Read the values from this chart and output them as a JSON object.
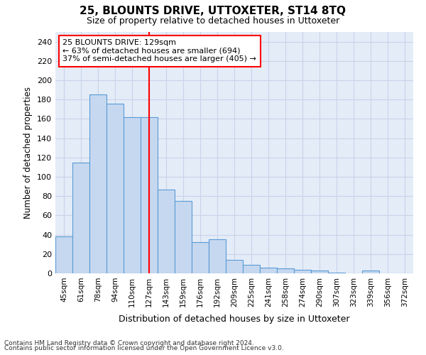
{
  "title": "25, BLOUNTS DRIVE, UTTOXETER, ST14 8TQ",
  "subtitle": "Size of property relative to detached houses in Uttoxeter",
  "xlabel": "Distribution of detached houses by size in Uttoxeter",
  "ylabel": "Number of detached properties",
  "categories": [
    "45sqm",
    "61sqm",
    "78sqm",
    "94sqm",
    "110sqm",
    "127sqm",
    "143sqm",
    "159sqm",
    "176sqm",
    "192sqm",
    "209sqm",
    "225sqm",
    "241sqm",
    "258sqm",
    "274sqm",
    "290sqm",
    "307sqm",
    "323sqm",
    "339sqm",
    "356sqm",
    "372sqm"
  ],
  "values": [
    38,
    115,
    185,
    176,
    162,
    162,
    87,
    75,
    32,
    35,
    14,
    9,
    6,
    5,
    4,
    3,
    1,
    0,
    3,
    0,
    0
  ],
  "bar_color": "#c5d8f0",
  "bar_edgecolor": "#5a9bd5",
  "redline_x": 5,
  "annotation_line1": "25 BLOUNTS DRIVE: 129sqm",
  "annotation_line2": "← 63% of detached houses are smaller (694)",
  "annotation_line3": "37% of semi-detached houses are larger (405) →",
  "ylim": [
    0,
    250
  ],
  "yticks": [
    0,
    20,
    40,
    60,
    80,
    100,
    120,
    140,
    160,
    180,
    200,
    220,
    240
  ],
  "grid_color": "#c8d4e8",
  "background_color": "#e4ecf8",
  "footnote1": "Contains HM Land Registry data © Crown copyright and database right 2024.",
  "footnote2": "Contains public sector information licensed under the Open Government Licence v3.0."
}
